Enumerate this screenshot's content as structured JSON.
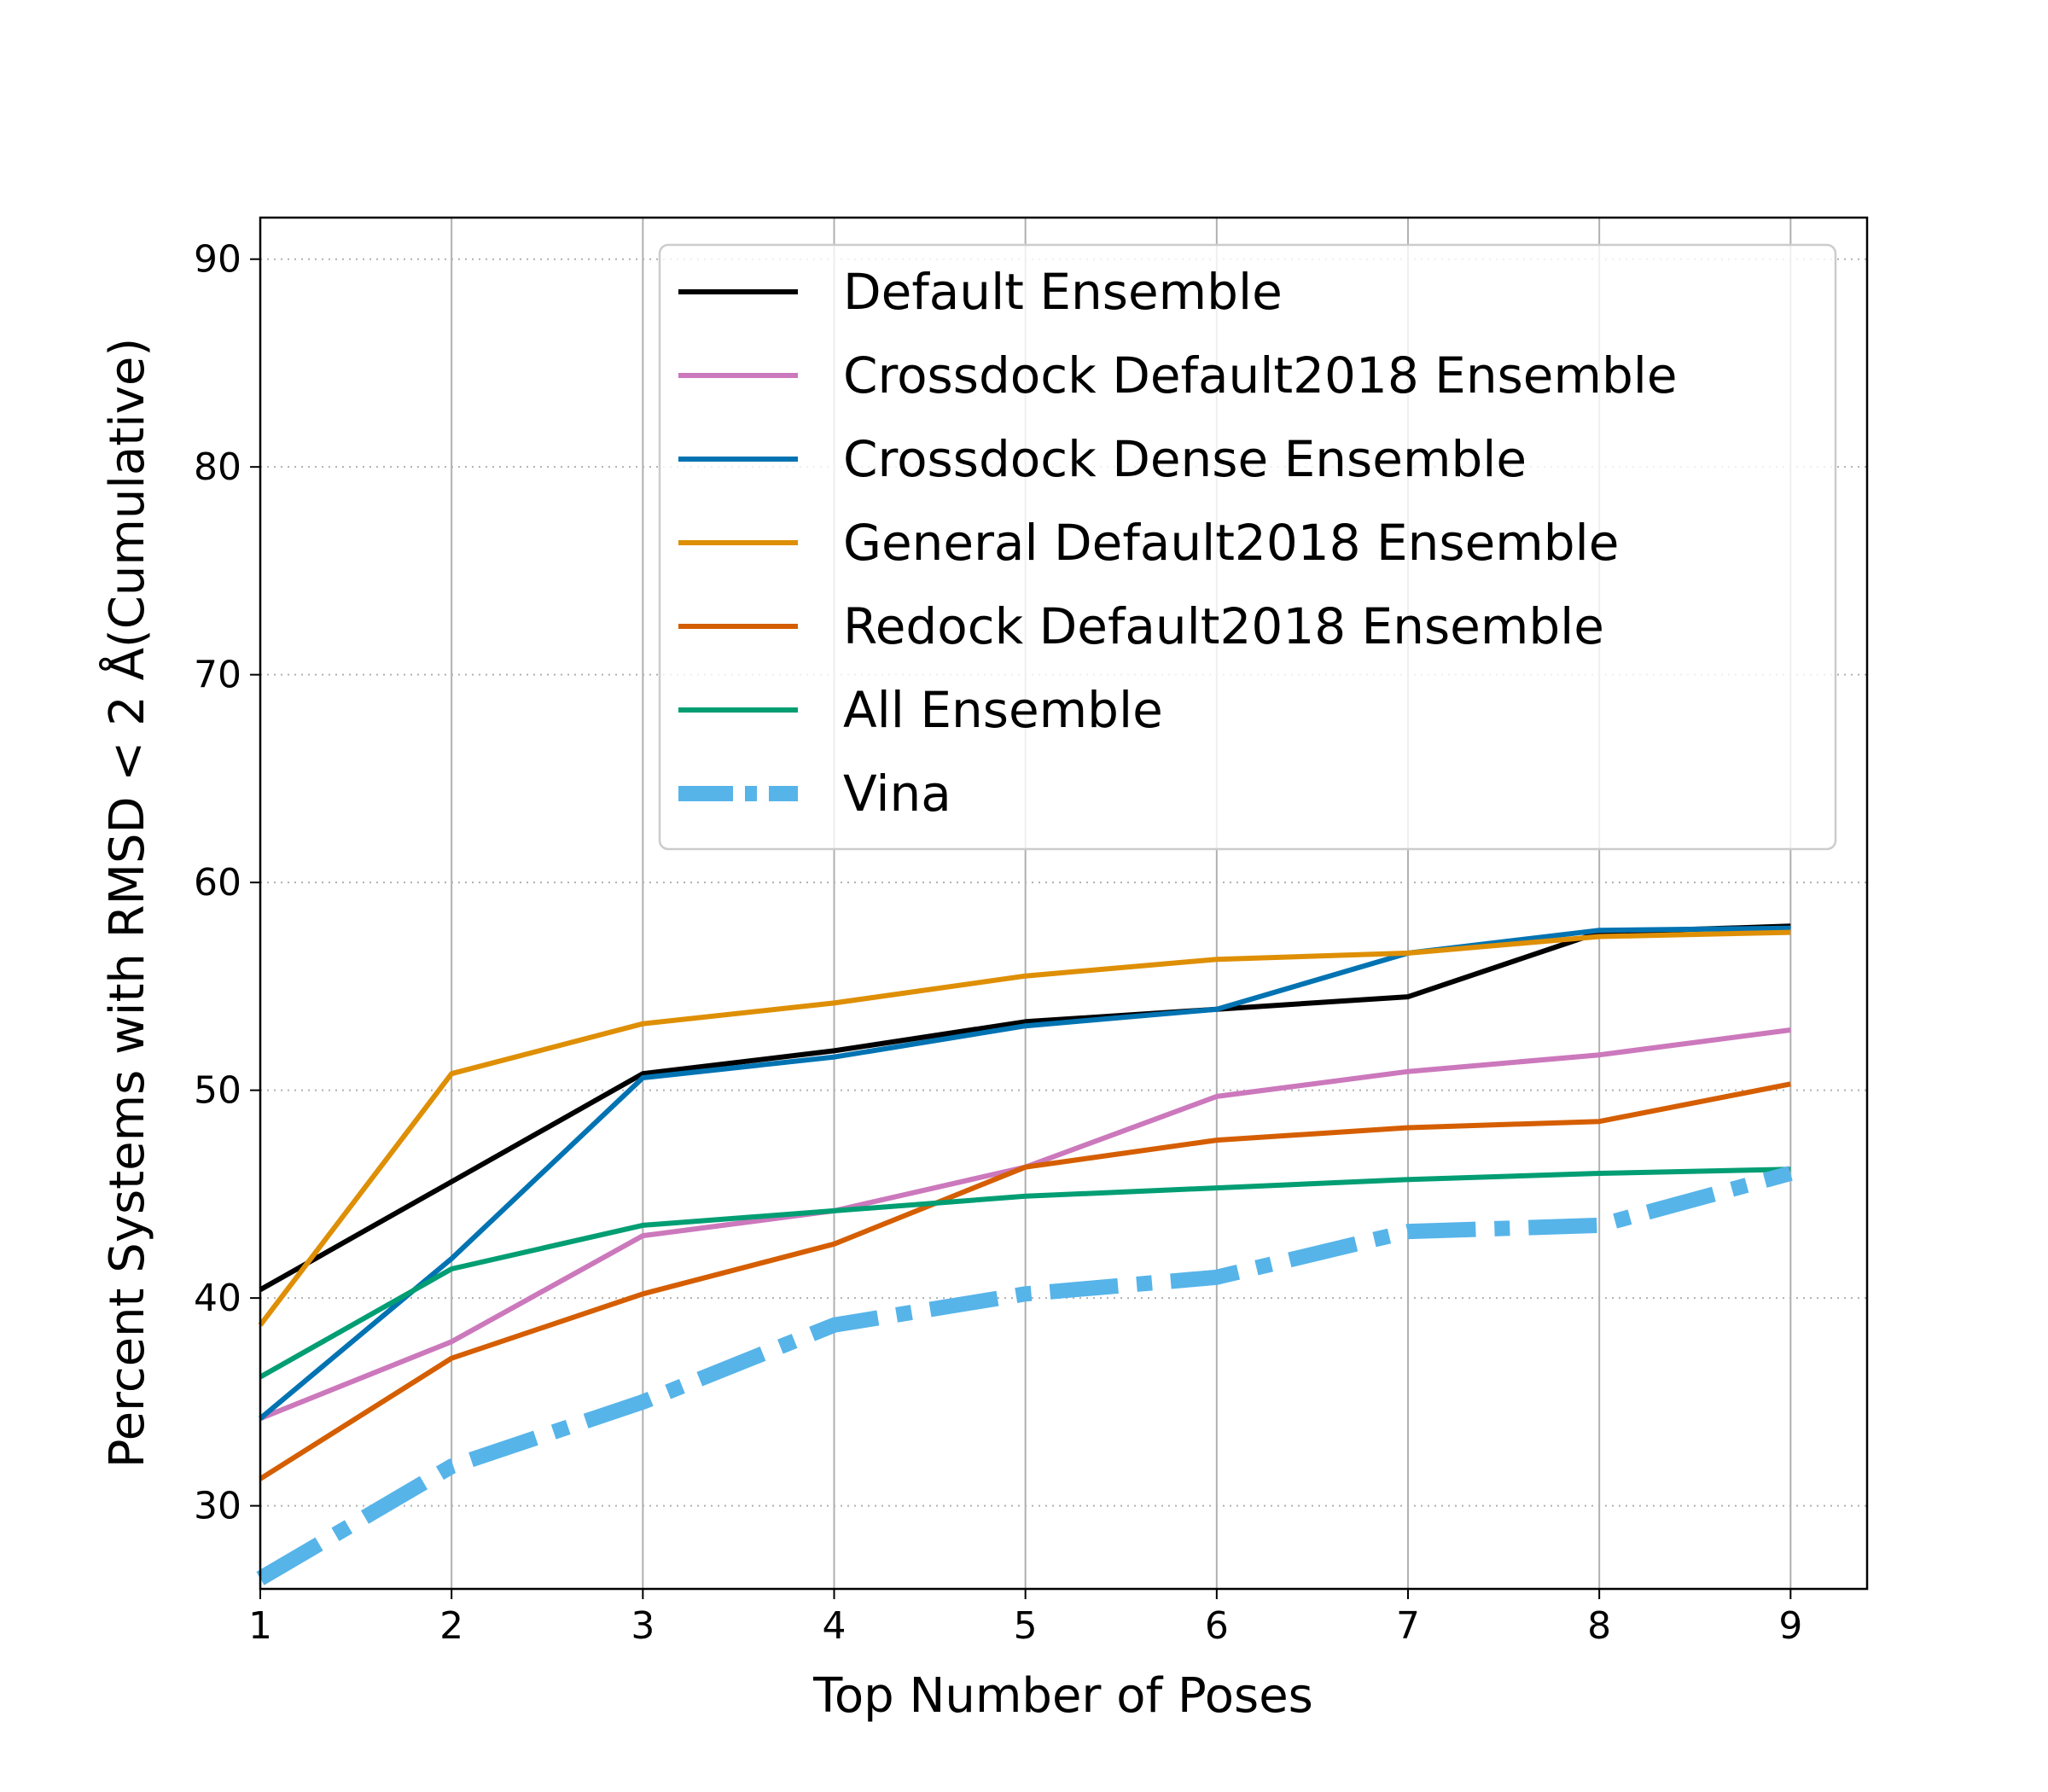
{
  "chart_data": {
    "type": "line",
    "title": "",
    "xlabel": "Top Number of Poses",
    "ylabel": "Percent Systems with RMSD < 2 Å(Cumulative)",
    "xlim": [
      1,
      9.4
    ],
    "ylim": [
      26,
      92
    ],
    "xticks": [
      1,
      2,
      3,
      4,
      5,
      6,
      7,
      8,
      9
    ],
    "yticks": [
      30,
      40,
      50,
      60,
      70,
      80,
      90
    ],
    "grid": {
      "x": "solid",
      "y": "dotted"
    },
    "legend_position": "upper right",
    "x": [
      1,
      2,
      3,
      4,
      5,
      6,
      7,
      8,
      9
    ],
    "series": [
      {
        "name": "Default Ensemble",
        "color": "#000000",
        "style": "solid",
        "values": [
          40.4,
          45.6,
          50.8,
          51.9,
          53.3,
          53.9,
          54.5,
          57.6,
          57.9
        ]
      },
      {
        "name": "Crossdock Default2018 Ensemble",
        "color": "#cc78bc",
        "style": "solid",
        "values": [
          34.2,
          37.9,
          43.0,
          44.2,
          46.3,
          49.7,
          50.9,
          51.7,
          52.9
        ]
      },
      {
        "name": "Crossdock Dense Ensemble",
        "color": "#0173b2",
        "style": "solid",
        "values": [
          34.2,
          41.9,
          50.6,
          51.6,
          53.1,
          53.9,
          56.6,
          57.7,
          57.8
        ]
      },
      {
        "name": "General Default2018 Ensemble",
        "color": "#de8f05",
        "style": "solid",
        "values": [
          38.7,
          50.8,
          53.2,
          54.2,
          55.5,
          56.3,
          56.6,
          57.4,
          57.6
        ]
      },
      {
        "name": "Redock Default2018 Ensemble",
        "color": "#d55e00",
        "style": "solid",
        "values": [
          31.3,
          37.1,
          40.2,
          42.6,
          46.3,
          47.6,
          48.2,
          48.5,
          50.3
        ]
      },
      {
        "name": "All Ensemble",
        "color": "#029e73",
        "style": "solid",
        "values": [
          36.2,
          41.4,
          43.5,
          44.2,
          44.9,
          45.3,
          45.7,
          46.0,
          46.2
        ]
      },
      {
        "name": "Vina",
        "color": "#56b4e9",
        "style": "dashdot",
        "values": [
          26.5,
          31.9,
          35.0,
          38.7,
          40.2,
          41.0,
          43.2,
          43.5,
          46.0
        ]
      }
    ]
  }
}
